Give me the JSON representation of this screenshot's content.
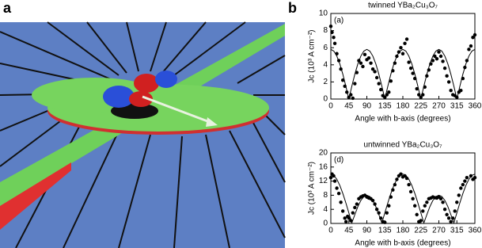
{
  "panel_labels": [
    "a",
    "b"
  ],
  "chart_data": [
    {
      "type": "scatter",
      "title": "twinned YBa₂Cu₃O₇",
      "annotation": "(a)",
      "xlabel": "Angle with b-axis  (degrees)",
      "ylabel": "Jc  (10³ A cm⁻²)",
      "xlim": [
        0,
        360
      ],
      "xticks": [
        0,
        45,
        90,
        135,
        180,
        225,
        270,
        315,
        360
      ],
      "ylim": [
        0,
        10
      ],
      "yticks": [
        0,
        2,
        4,
        6,
        8,
        10
      ],
      "color": "#000000",
      "points": {
        "x": [
          0,
          3,
          7,
          10,
          15,
          20,
          25,
          30,
          35,
          40,
          45,
          50,
          55,
          60,
          65,
          70,
          75,
          80,
          85,
          90,
          95,
          100,
          105,
          110,
          115,
          120,
          125,
          130,
          135,
          140,
          145,
          150,
          155,
          160,
          165,
          170,
          175,
          180,
          185,
          190,
          195,
          200,
          205,
          210,
          215,
          220,
          225,
          230,
          235,
          240,
          245,
          250,
          255,
          260,
          265,
          270,
          275,
          280,
          285,
          290,
          295,
          300,
          305,
          310,
          315,
          320,
          325,
          330,
          335,
          340,
          345,
          350,
          355,
          360
        ],
        "y": [
          8.5,
          7.8,
          7.2,
          6.5,
          5.3,
          4.5,
          3.5,
          2.2,
          1.5,
          0.8,
          0.2,
          0.5,
          0.1,
          1.8,
          3.1,
          4.5,
          4.2,
          3.8,
          5.2,
          4.6,
          4.8,
          4.2,
          3.5,
          3.2,
          2.5,
          1.8,
          1.1,
          0.4,
          0.2,
          0.5,
          0.8,
          2.1,
          3.3,
          4.2,
          5.0,
          5.5,
          6.0,
          5.3,
          6.5,
          7.0,
          4.3,
          3.6,
          3.0,
          2.4,
          1.2,
          0.5,
          0.2,
          0.5,
          1.4,
          2.7,
          3.4,
          4.1,
          4.5,
          5.0,
          4.7,
          5.5,
          5.0,
          4.4,
          3.6,
          2.7,
          2.0,
          1.0,
          0.5,
          0.4,
          0.2,
          0.8,
          1.0,
          2.4,
          3.7,
          4.5,
          5.8,
          6.2,
          7.2,
          7.5
        ]
      },
      "fit": {
        "x": [
          0,
          7.5,
          15,
          22.5,
          30,
          37.5,
          45,
          52.5,
          60,
          67.5,
          75,
          82.5,
          90,
          97.5,
          105,
          112.5,
          120,
          127.5,
          135,
          142.5,
          150,
          157.5,
          165,
          172.5,
          180,
          187.5,
          195,
          202.5,
          210,
          217.5,
          225,
          232.5,
          240,
          247.5,
          255,
          262.5,
          270,
          277.5,
          285,
          292.5,
          300,
          307.5,
          315,
          322.5,
          330,
          337.5,
          345,
          352.5,
          360
        ],
        "y": [
          5.8,
          5.6,
          5.02,
          4.1,
          2.9,
          1.5,
          0,
          1.5,
          2.9,
          4.1,
          5.02,
          5.6,
          5.8,
          5.6,
          5.02,
          4.1,
          2.9,
          1.5,
          0,
          1.5,
          2.9,
          4.1,
          5.02,
          5.6,
          5.8,
          5.6,
          5.02,
          4.1,
          2.9,
          1.5,
          0,
          1.5,
          2.9,
          4.1,
          5.02,
          5.6,
          5.8,
          5.6,
          5.02,
          4.1,
          2.9,
          1.5,
          0,
          1.5,
          2.9,
          4.1,
          5.02,
          5.6,
          5.8
        ]
      }
    },
    {
      "type": "scatter",
      "title": "untwinned YBa₂Cu₃O₇",
      "annotation": "(d)",
      "xlabel": "Angle with b-axis  (degrees)",
      "ylabel": "Jc  (10³ A cm⁻²)",
      "xlim": [
        0,
        360
      ],
      "xticks": [
        0,
        45,
        90,
        135,
        180,
        225,
        270,
        315,
        360
      ],
      "ylim": [
        0,
        20
      ],
      "yticks": [
        0,
        4,
        8,
        12,
        16,
        20
      ],
      "color": "#000000",
      "points": {
        "x": [
          0,
          3,
          7,
          10,
          15,
          20,
          25,
          30,
          35,
          38,
          42,
          45,
          50,
          55,
          60,
          65,
          70,
          75,
          80,
          85,
          90,
          95,
          100,
          105,
          110,
          115,
          120,
          125,
          130,
          135,
          140,
          145,
          150,
          155,
          160,
          165,
          170,
          175,
          180,
          185,
          190,
          195,
          200,
          205,
          210,
          215,
          220,
          225,
          230,
          235,
          240,
          245,
          250,
          255,
          260,
          265,
          270,
          275,
          280,
          285,
          290,
          295,
          300,
          305,
          310,
          315,
          320,
          325,
          330,
          335,
          340,
          350,
          355,
          360
        ],
        "y": [
          13,
          14,
          13.5,
          12,
          10,
          8.5,
          6,
          3.5,
          1.5,
          0.5,
          2,
          1.5,
          0.8,
          3,
          4.5,
          5.5,
          7,
          7.5,
          7.8,
          8,
          7.5,
          7.2,
          7,
          6.5,
          5.5,
          4,
          3,
          1.5,
          0.5,
          0.3,
          3,
          5,
          7.5,
          9.5,
          11,
          12.5,
          13.5,
          14,
          13.2,
          13.5,
          12.8,
          11,
          9,
          7,
          5,
          2.5,
          0.5,
          0.8,
          3.5,
          5,
          6,
          7,
          7.2,
          7.5,
          7.3,
          7.2,
          7.5,
          7,
          6,
          4,
          2.5,
          1.5,
          0.5,
          1.5,
          3.5,
          6,
          8,
          10,
          11,
          12,
          13,
          13.5,
          12.5,
          13
        ]
      },
      "fit": {
        "x": [
          0,
          7.5,
          15,
          22.5,
          30,
          37.5,
          45,
          52.5,
          60,
          67.5,
          75,
          82.5,
          90,
          97.5,
          105,
          112.5,
          120,
          127.5,
          135,
          142.5,
          150,
          157.5,
          165,
          172.5,
          180,
          187.5,
          195,
          202.5,
          210,
          217.5,
          225,
          232.5,
          240,
          247.5,
          255,
          262.5,
          270,
          277.5,
          285,
          292.5,
          300,
          307.5,
          315,
          322.5,
          330,
          337.5,
          345,
          352.5,
          360
        ],
        "y": [
          14,
          13.63,
          12.53,
          10.78,
          8.5,
          5.85,
          3,
          0.15,
          2.5,
          4.77,
          6.52,
          7.62,
          8,
          7.62,
          6.52,
          4.77,
          2.5,
          0.15,
          3,
          5.85,
          8.5,
          10.78,
          12.53,
          13.63,
          14,
          13.63,
          12.53,
          10.78,
          8.5,
          5.85,
          3,
          0.15,
          2.5,
          4.77,
          6.52,
          7.62,
          8,
          7.62,
          6.52,
          4.77,
          2.5,
          0.15,
          3,
          5.85,
          8.5,
          10.78,
          12.53,
          13.63,
          14
        ]
      }
    }
  ]
}
